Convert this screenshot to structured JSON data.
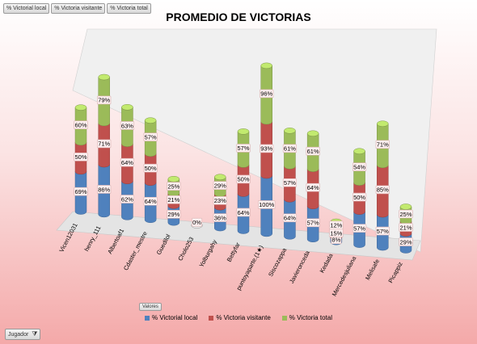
{
  "field_buttons": [
    "% Victorial local",
    "% Victoria visitante",
    "% Victoria total"
  ],
  "values_button": "Valores",
  "filter_button": "Jugador",
  "chart_data": {
    "type": "bar",
    "title": "PROMEDIO DE VICTORIAS",
    "stacked": true,
    "three_d": true,
    "categories": [
      "Vicen12031",
      "henry_111",
      "Albertoaf1",
      "Cdaster_mestre",
      "Guedilol",
      "Cholo253",
      "Yolburgahy",
      "Bettyfar",
      "puntoyaparte.(1★)",
      "Siscozappa",
      "Javieronceda",
      "Kedada",
      "Mercedesjuliana",
      "Melisafe",
      "Picappiz"
    ],
    "series": [
      {
        "name": "% Victorial local",
        "color": "#4f81bd",
        "labels": [
          "69%",
          "86%",
          "62%",
          "64%",
          "29%",
          "0%",
          "36%",
          "64%",
          "100%",
          "64%",
          "57%",
          "8%",
          "57%",
          "57%",
          "29%"
        ],
        "values": [
          69,
          86,
          62,
          64,
          29,
          0,
          36,
          64,
          100,
          64,
          57,
          8,
          57,
          57,
          29
        ]
      },
      {
        "name": "% Victoria visitante",
        "color": "#c0504d",
        "labels": [
          "50%",
          "71%",
          "64%",
          "50%",
          "21%",
          "",
          "23%",
          "50%",
          "93%",
          "57%",
          "64%",
          "15%",
          "50%",
          "85%",
          "21%"
        ],
        "values": [
          50,
          71,
          64,
          50,
          21,
          0,
          23,
          50,
          93,
          57,
          64,
          15,
          50,
          85,
          21
        ]
      },
      {
        "name": "% Victoria total",
        "color": "#9bbb59",
        "labels": [
          "60%",
          "79%",
          "63%",
          "57%",
          "25%",
          "",
          "29%",
          "57%",
          "96%",
          "61%",
          "61%",
          "12%",
          "54%",
          "71%",
          "25%"
        ],
        "values": [
          60,
          79,
          63,
          57,
          25,
          0,
          29,
          57,
          96,
          61,
          61,
          12,
          54,
          71,
          25
        ]
      }
    ],
    "legend_position": "bottom",
    "gridlines": false
  }
}
